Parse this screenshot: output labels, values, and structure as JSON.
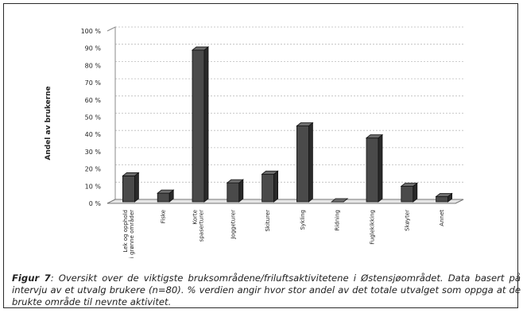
{
  "chart_data": {
    "type": "bar",
    "ylabel": "Andel av brukerne",
    "ylim": [
      0,
      100
    ],
    "yticks": [
      "0 %",
      "10 %",
      "20 %",
      "30 %",
      "40 %",
      "50 %",
      "60 %",
      "70 %",
      "80 %",
      "90 %",
      "100 %"
    ],
    "categories": [
      "Lek og opphold i grønne områder",
      "Fiske",
      "Korte spaserturer",
      "Joggeturer",
      "Skiturer",
      "Sykling",
      "Ridning",
      "Fuglekikking",
      "Skøyter",
      "Annet"
    ],
    "values": [
      15,
      5,
      88,
      11,
      16,
      44,
      0,
      37,
      9,
      3
    ],
    "grid": true,
    "bar_color": "#4a4a4a"
  },
  "caption": {
    "label": "Figur 7",
    "text": ": Oversikt over de viktigste bruksområdene/friluftsaktivitetene i Østensjøområdet. Data basert på intervju av et utvalg brukere (n=80). % verdien angir hvor stor andel av det totale utvalget som oppga at de brukte område til nevnte aktivitet."
  }
}
